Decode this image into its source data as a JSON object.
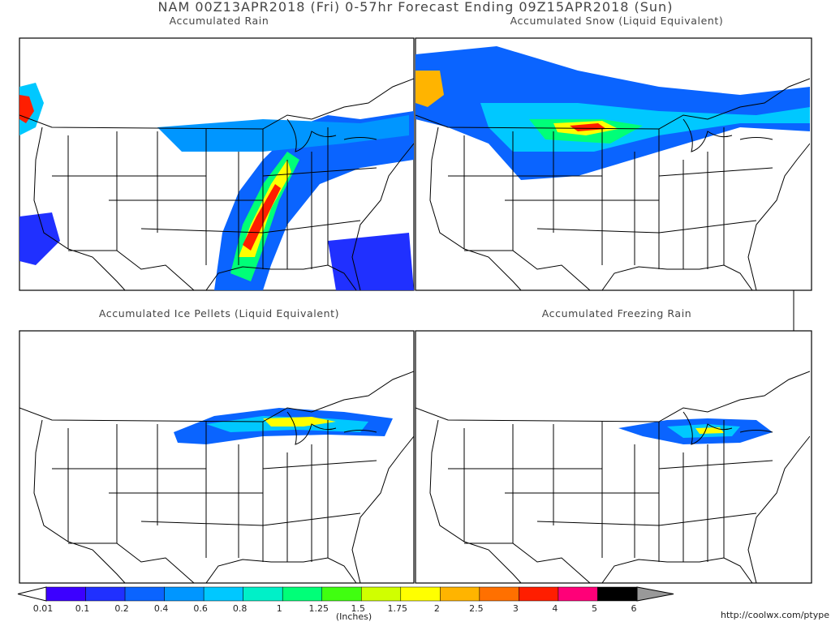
{
  "header": {
    "title": "NAM 00Z13APR2018 (Fri) 0-57hr Forecast Ending 09Z15APR2018 (Sun)"
  },
  "panels": [
    {
      "title": "Accumulated Rain"
    },
    {
      "title": "Accumulated Snow (Liquid Equivalent)"
    },
    {
      "title": "Accumulated Ice Pellets (Liquid Equivalent)"
    },
    {
      "title": "Accumulated Freezing Rain"
    }
  ],
  "colorbar": {
    "levels": [
      0.01,
      0.1,
      0.2,
      0.4,
      0.6,
      0.8,
      1,
      1.25,
      1.5,
      1.75,
      2,
      2.5,
      3,
      4,
      5,
      6
    ],
    "colors": [
      "#3c00ff",
      "#2030ff",
      "#0a64ff",
      "#0096ff",
      "#00c8ff",
      "#00f0c8",
      "#00ff78",
      "#40ff10",
      "#d0ff00",
      "#ffff00",
      "#ffb400",
      "#ff7000",
      "#ff1e00",
      "#ff0078",
      "#000000"
    ],
    "unit": "(Inches)"
  },
  "footer": {
    "credit": "http://coolwx.com/ptype"
  }
}
